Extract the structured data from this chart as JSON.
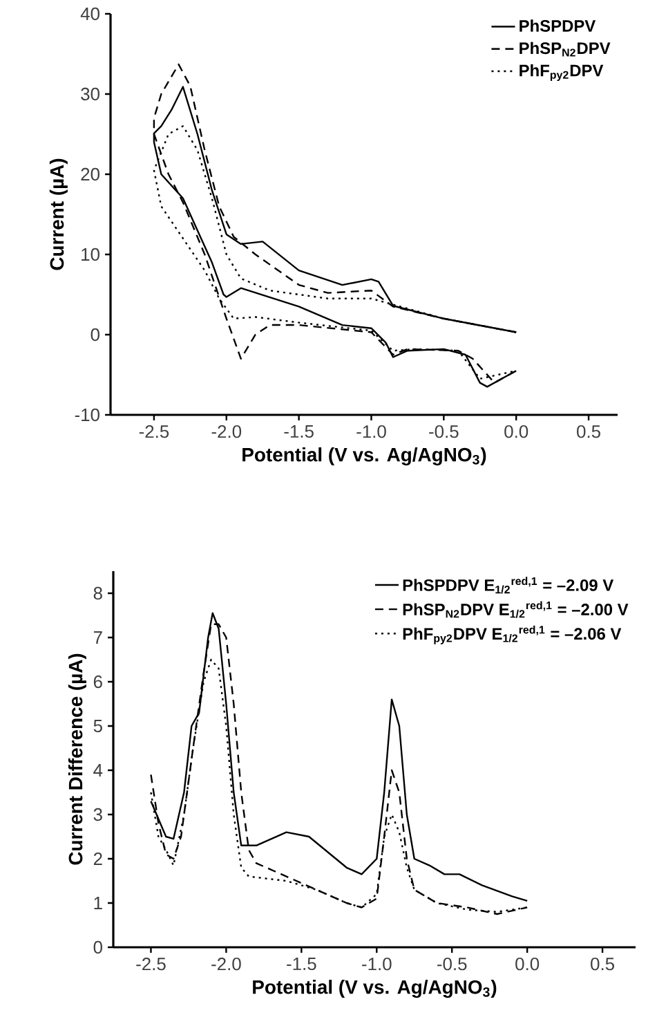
{
  "chart_data": [
    {
      "type": "line",
      "xlabel": "Potential  (V vs. Ag/AgNO$_{3}$)",
      "ylabel": "Current (µA)",
      "xlim": [
        -2.8,
        0.7
      ],
      "ylim": [
        -10,
        40
      ],
      "xticks": [
        -2.5,
        {
          "value": -2,
          "label": "-2.0"
        },
        -1.5,
        {
          "value": -1,
          "label": "-1.0"
        },
        -0.5,
        {
          "value": 0,
          "label": "0.0"
        },
        0.5
      ],
      "yticks": [
        -10,
        0,
        10,
        20,
        30,
        40
      ],
      "legend": "top right",
      "grid": false,
      "series": [
        {
          "name": "PhSPDPV",
          "color": "#000000",
          "line_style": "solid",
          "x": [
            0.0,
            -0.5,
            -0.85,
            -0.95,
            -1.0,
            -1.2,
            -1.5,
            -1.75,
            -1.9,
            -2.0,
            -2.1,
            -2.2,
            -2.3,
            -2.38,
            -2.45,
            -2.5,
            -2.5,
            -2.45,
            -2.3,
            -2.2,
            -2.1,
            -2.02,
            -2.0,
            -1.9,
            -1.5,
            -1.2,
            -1.0,
            -0.9,
            -0.85,
            -0.75,
            -0.5,
            -0.35,
            -0.25,
            -0.2,
            -0.1,
            0.0
          ],
          "values": [
            0.3,
            2,
            3.6,
            6.6,
            6.9,
            6.2,
            8,
            11.6,
            11.3,
            12.5,
            18,
            25,
            30.9,
            28,
            26,
            25.1,
            24,
            20,
            17,
            13,
            9,
            5,
            4.7,
            5.8,
            3.5,
            1.2,
            0.8,
            -1,
            -2.8,
            -2,
            -1.8,
            -2.5,
            -6,
            -6.5,
            -5.5,
            -4.5
          ]
        },
        {
          "name": "PhSP$_{N2}$DPV",
          "color": "#000000",
          "line_style": "dashed",
          "x": [
            0.0,
            -0.5,
            -0.85,
            -1.0,
            -1.3,
            -1.5,
            -1.8,
            -1.95,
            -2.05,
            -2.15,
            -2.25,
            -2.33,
            -2.45,
            -2.5,
            -2.5,
            -2.4,
            -2.3,
            -2.15,
            -2.0,
            -1.9,
            -1.8,
            -1.7,
            -1.5,
            -1.0,
            -0.85,
            -0.75,
            -0.4,
            -0.3,
            -0.15,
            0.0
          ],
          "values": [
            0.3,
            2,
            3.5,
            5.5,
            5.2,
            6.2,
            10,
            12.2,
            16,
            23,
            31,
            33.7,
            30,
            27,
            25,
            20,
            16.5,
            10,
            2,
            -3,
            0,
            1.2,
            1.2,
            0.3,
            -2.5,
            -1.8,
            -2,
            -3,
            -6,
            -4.5
          ]
        },
        {
          "name": "PhF$_{py2}$DPV",
          "color": "#000000",
          "line_style": "dotted",
          "x": [
            0.0,
            -0.5,
            -0.8,
            -1.0,
            -1.3,
            -1.7,
            -1.9,
            -2.0,
            -2.1,
            -2.2,
            -2.3,
            -2.4,
            -2.5,
            -2.45,
            -2.3,
            -2.15,
            -2.05,
            -1.95,
            -1.8,
            -1.5,
            -1.0,
            -0.85,
            -0.7,
            -0.4,
            -0.25,
            0.0
          ],
          "values": [
            0.3,
            2,
            3.5,
            4.5,
            4.5,
            5.5,
            7,
            10,
            17,
            23,
            26,
            25,
            20.5,
            16,
            12,
            8,
            4.5,
            2,
            2.2,
            1.5,
            0.5,
            -2,
            -1.8,
            -2,
            -5.5,
            -4.5
          ]
        }
      ]
    },
    {
      "type": "line",
      "xlabel": "Potential  (V vs. Ag/AgNO$_{3}$)",
      "ylabel": "Current Difference (µA)",
      "xlim": [
        -2.75,
        0.72
      ],
      "ylim": [
        0,
        8.5
      ],
      "xticks": [
        -2.5,
        {
          "value": -2,
          "label": "-2.0"
        },
        -1.5,
        {
          "value": -1,
          "label": "-1.0"
        },
        -0.5,
        {
          "value": 0,
          "label": "0.0"
        },
        0.5
      ],
      "yticks": [
        0,
        1,
        2,
        3,
        4,
        5,
        6,
        7,
        8
      ],
      "legend": "top right",
      "grid": false,
      "series": [
        {
          "name": "PhSPDPV    E$_{1/2}$$^{red,1}$ = –2.09 V",
          "color": "#000000",
          "line_style": "solid",
          "x": [
            -2.5,
            -2.4,
            -2.35,
            -2.28,
            -2.23,
            -2.18,
            -2.12,
            -2.09,
            -2.05,
            -2.0,
            -1.95,
            -1.9,
            -1.8,
            -1.6,
            -1.45,
            -1.2,
            -1.1,
            -1.0,
            -0.95,
            -0.9,
            -0.85,
            -0.8,
            -0.75,
            -0.65,
            -0.55,
            -0.45,
            -0.3,
            -0.1,
            0.0
          ],
          "values": [
            3.3,
            2.5,
            2.45,
            3.5,
            5.0,
            5.3,
            7.0,
            7.55,
            7.2,
            5.5,
            3.5,
            2.3,
            2.3,
            2.6,
            2.5,
            1.8,
            1.65,
            2.0,
            3.5,
            5.6,
            5.0,
            3.0,
            2.0,
            1.85,
            1.65,
            1.65,
            1.4,
            1.15,
            1.05
          ]
        },
        {
          "name": "PhSP$_{N2}$DPV  E$_{1/2}$$^{red,1}$ = –2.00 V",
          "color": "#000000",
          "line_style": "dashed",
          "x": [
            -2.5,
            -2.45,
            -2.4,
            -2.35,
            -2.3,
            -2.22,
            -2.15,
            -2.1,
            -2.05,
            -2.0,
            -1.95,
            -1.9,
            -1.85,
            -1.8,
            -1.6,
            -1.4,
            -1.2,
            -1.1,
            -1.0,
            -0.95,
            -0.9,
            -0.85,
            -0.8,
            -0.75,
            -0.6,
            -0.4,
            -0.2,
            0.0
          ],
          "values": [
            3.9,
            2.8,
            2.1,
            2.0,
            2.5,
            4.5,
            6.2,
            7.3,
            7.3,
            7.0,
            5.5,
            3.5,
            2.2,
            1.9,
            1.6,
            1.3,
            1.0,
            0.9,
            1.1,
            2.5,
            4.0,
            3.5,
            2.0,
            1.3,
            1.0,
            0.9,
            0.75,
            0.9
          ]
        },
        {
          "name": "PhF$_{py2}$DPV    E$_{1/2}$$^{red,1}$ = –2.06 V",
          "color": "#000000",
          "line_style": "dotted",
          "x": [
            -2.5,
            -2.45,
            -2.4,
            -2.35,
            -2.28,
            -2.22,
            -2.15,
            -2.1,
            -2.05,
            -2.0,
            -1.95,
            -1.9,
            -1.85,
            -1.6,
            -1.4,
            -1.2,
            -1.1,
            -1.0,
            -0.95,
            -0.9,
            -0.85,
            -0.8,
            -0.75,
            -0.6,
            -0.4,
            -0.2,
            0.0
          ],
          "values": [
            3.5,
            2.5,
            2.2,
            1.85,
            3.0,
            4.5,
            6.0,
            6.5,
            6.3,
            5.0,
            3.0,
            1.8,
            1.6,
            1.5,
            1.3,
            1.0,
            0.9,
            1.2,
            2.5,
            3.0,
            2.6,
            1.8,
            1.3,
            1.0,
            0.85,
            0.8,
            0.9
          ]
        }
      ]
    }
  ]
}
